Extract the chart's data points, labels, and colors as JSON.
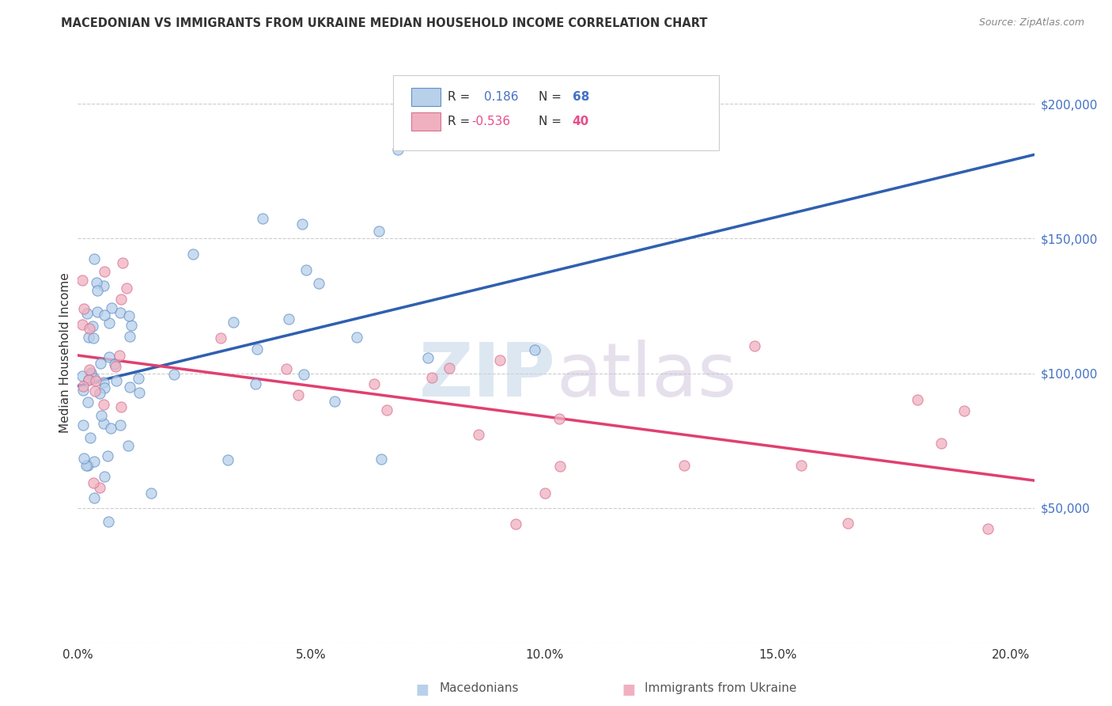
{
  "title": "MACEDONIAN VS IMMIGRANTS FROM UKRAINE MEDIAN HOUSEHOLD INCOME CORRELATION CHART",
  "source": "Source: ZipAtlas.com",
  "xlabel_ticks": [
    "0.0%",
    "5.0%",
    "10.0%",
    "15.0%",
    "20.0%"
  ],
  "xlabel_tick_vals": [
    0.0,
    0.05,
    0.1,
    0.15,
    0.2
  ],
  "ylabel": "Median Household Income",
  "ytick_vals": [
    0,
    50000,
    100000,
    150000,
    200000
  ],
  "ytick_labels": [
    "",
    "$50,000",
    "$100,000",
    "$150,000",
    "$200,000"
  ],
  "xlim": [
    0.0,
    0.205
  ],
  "ylim": [
    15000,
    215000
  ],
  "R_macedonian": 0.186,
  "N_macedonian": 68,
  "R_ukraine": -0.536,
  "N_ukraine": 40,
  "color_macedonian_fill": "#b8d0ea",
  "color_macedonian_edge": "#6090c8",
  "color_ukraine_fill": "#f0b0c0",
  "color_ukraine_edge": "#d87090",
  "line_color_macedonian": "#3060b0",
  "line_color_macedonian_dashed": "#90b8e0",
  "line_color_ukraine": "#e04070",
  "legend_mac_fill": "#b8d0ea",
  "legend_ukr_fill": "#f0b0c0",
  "watermark_zip_color": "#c5d8ec",
  "watermark_atlas_color": "#c8c0d8",
  "background_color": "#ffffff",
  "grid_color": "#cccccc",
  "title_color": "#333333",
  "source_color": "#888888",
  "ylabel_color": "#333333",
  "ytick_color": "#4472c4",
  "xtick_color": "#333333"
}
